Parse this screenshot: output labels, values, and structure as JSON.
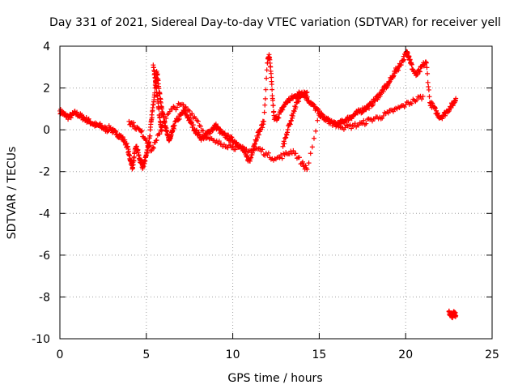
{
  "chart_data": {
    "type": "scatter",
    "title": "Day 331 of 2021, Sidereal Day-to-day VTEC variation (SDTVAR) for receiver yell",
    "xlabel": "GPS time / hours",
    "ylabel": "SDTVAR / TECUs",
    "xlim": [
      0,
      25
    ],
    "ylim": [
      -10,
      4
    ],
    "xticks": [
      0,
      5,
      10,
      15,
      20,
      25
    ],
    "yticks": [
      -10,
      -8,
      -6,
      -4,
      -2,
      0,
      2,
      4
    ],
    "grid": true,
    "marker": "+",
    "colors": {
      "series": "#ff0000",
      "grid": "#a0a0a0",
      "axis": "#000000"
    },
    "series": [
      {
        "name": "SDTVAR",
        "x": [
          0.0,
          0.15,
          0.3,
          0.5,
          0.7,
          0.9,
          1.1,
          1.3,
          1.5,
          1.7,
          1.9,
          2.1,
          2.3,
          2.5,
          2.7,
          2.9,
          3.1,
          3.3,
          3.5,
          3.7,
          3.9,
          4.0,
          4.1,
          4.2,
          4.3,
          4.4,
          4.5,
          4.6,
          4.7,
          4.8,
          4.9,
          5.0,
          5.1,
          5.2,
          5.3,
          5.4,
          5.5,
          5.6,
          5.7,
          5.8,
          5.9,
          6.0,
          6.1,
          6.2,
          6.3,
          6.4,
          6.5,
          6.6,
          6.8,
          7.0,
          7.2,
          7.4,
          7.6,
          7.8,
          8.0,
          8.2,
          8.4,
          8.6,
          8.8,
          9.0,
          9.2,
          9.4,
          9.6,
          9.8,
          10.0,
          10.2,
          10.4,
          10.6,
          10.8,
          11.0,
          11.2,
          11.4,
          11.6,
          11.8,
          12.0,
          12.1,
          12.2,
          12.3,
          12.4,
          12.6,
          12.8,
          13.0,
          13.2,
          13.4,
          13.6,
          13.8,
          14.0,
          14.2,
          14.4,
          14.6,
          14.8,
          15.0,
          15.2,
          15.4,
          15.6,
          15.8,
          16.0,
          16.2,
          16.4,
          16.6,
          16.8,
          17.0,
          17.2,
          17.4,
          17.6,
          17.8,
          18.0,
          18.2,
          18.4,
          18.6,
          18.8,
          19.0,
          19.2,
          19.4,
          19.6,
          19.8,
          20.0,
          20.1,
          20.2,
          20.3,
          20.4,
          20.6,
          20.8,
          21.0,
          21.2,
          21.4,
          21.6,
          21.8,
          22.0,
          22.2,
          22.4,
          22.6,
          22.8,
          22.9,
          4.0,
          4.3,
          4.7,
          5.0,
          5.3,
          5.6,
          6.0,
          6.5,
          7.0,
          7.5,
          8.0,
          8.5,
          9.0,
          9.5,
          10.0,
          10.5,
          11.0,
          11.5,
          12.0,
          12.5,
          13.0,
          13.5,
          14.0,
          14.3,
          15.0,
          15.5,
          16.0,
          16.5,
          17.0,
          17.5,
          18.0,
          18.5,
          19.0,
          19.5,
          20.0,
          20.5,
          21.0,
          12.9,
          13.1,
          13.3,
          13.5,
          13.7,
          13.9,
          14.1,
          14.3,
          5.4,
          5.5,
          5.6,
          5.7,
          5.8,
          5.9,
          22.5,
          22.6,
          22.7,
          22.8,
          22.9
        ],
        "y": [
          0.9,
          0.8,
          0.7,
          0.6,
          0.7,
          0.8,
          0.7,
          0.6,
          0.5,
          0.4,
          0.3,
          0.2,
          0.2,
          0.1,
          0.0,
          0.1,
          -0.1,
          -0.2,
          -0.3,
          -0.5,
          -0.8,
          -1.2,
          -1.5,
          -1.8,
          -1.3,
          -0.8,
          -1.0,
          -1.4,
          -1.6,
          -1.8,
          -1.5,
          -1.2,
          -0.8,
          -0.3,
          0.5,
          1.2,
          2.0,
          2.8,
          2.2,
          1.5,
          1.0,
          0.6,
          0.2,
          -0.2,
          -0.5,
          -0.4,
          -0.1,
          0.2,
          0.5,
          0.7,
          0.9,
          0.6,
          0.3,
          0.0,
          -0.2,
          -0.4,
          -0.3,
          -0.1,
          0.0,
          0.2,
          0.0,
          -0.2,
          -0.3,
          -0.4,
          -0.5,
          -0.6,
          -0.8,
          -1.0,
          -1.3,
          -1.5,
          -0.8,
          -0.3,
          0.0,
          0.4,
          3.2,
          3.6,
          2.8,
          1.5,
          0.5,
          0.6,
          0.9,
          1.2,
          1.4,
          1.5,
          1.6,
          1.7,
          1.8,
          1.6,
          1.4,
          1.2,
          1.0,
          0.8,
          0.6,
          0.5,
          0.4,
          0.3,
          0.2,
          0.3,
          0.4,
          0.5,
          0.6,
          0.7,
          0.8,
          0.9,
          1.0,
          1.1,
          1.2,
          1.4,
          1.6,
          1.8,
          2.0,
          2.2,
          2.5,
          2.8,
          3.0,
          3.3,
          3.6,
          3.7,
          3.5,
          3.2,
          2.9,
          2.6,
          2.8,
          3.1,
          3.2,
          1.3,
          1.1,
          0.8,
          0.6,
          0.7,
          0.9,
          1.1,
          1.3,
          1.5,
          0.4,
          0.2,
          -0.1,
          -0.5,
          -1.0,
          -0.5,
          0.4,
          1.0,
          1.2,
          0.9,
          0.4,
          -0.4,
          -0.6,
          -0.7,
          -0.8,
          -0.9,
          -1.0,
          -0.9,
          -1.2,
          -1.4,
          -1.2,
          -1.0,
          -1.6,
          -1.9,
          0.7,
          0.5,
          0.3,
          0.1,
          0.2,
          0.3,
          0.5,
          0.6,
          0.8,
          1.0,
          1.2,
          1.4,
          1.6,
          -0.8,
          -0.2,
          0.3,
          0.8,
          1.3,
          1.6,
          1.7,
          1.8,
          3.1,
          2.5,
          1.8,
          1.1,
          0.4,
          0.0,
          -8.7,
          -8.8,
          -8.9,
          -8.8,
          -8.9
        ]
      }
    ]
  }
}
